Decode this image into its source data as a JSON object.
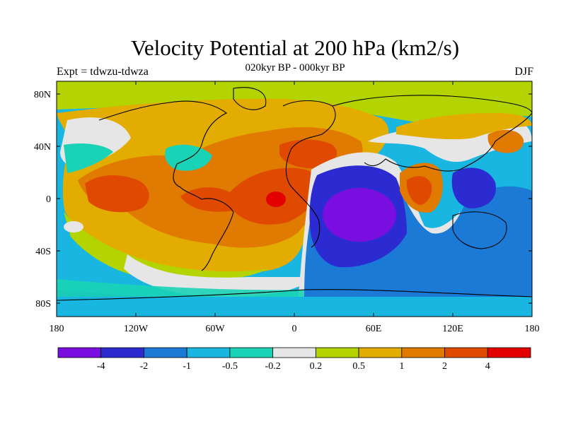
{
  "title": "Velocity Potential at 200 hPa (km2/s)",
  "center_string": "020kyr BP - 000kyr BP",
  "left_string": "Expt = tdwzu-tdwza",
  "right_string": "DJF",
  "map": {
    "projection": "cylindrical-equidistant",
    "lon_range": [
      -180,
      180
    ],
    "lat_range": [
      -90,
      90
    ],
    "x_ticks": [
      "180",
      "120W",
      "60W",
      "0",
      "60E",
      "120E",
      "180"
    ],
    "y_ticks": [
      "80N",
      "40N",
      "0",
      "40S",
      "80S"
    ],
    "coastlines": "black"
  },
  "colorbar": {
    "colors": [
      "#7a0ee0",
      "#2b2bd1",
      "#1a7ad6",
      "#18b6e0",
      "#1ad3b6",
      "#e6e6e6",
      "#b3d400",
      "#e3ac00",
      "#e07a00",
      "#e04a00",
      "#e30000"
    ],
    "labels": [
      "-4",
      "-2",
      "-1",
      "-0.5",
      "-0.2",
      "0.2",
      "0.5",
      "1",
      "2",
      "4"
    ]
  },
  "field_colors": {
    "ocean_bg": "#18b6e0",
    "level_minus4": "#7a0ee0",
    "level_minus2": "#2b2bd1",
    "level_minus1": "#1a7ad6",
    "level_minus05": "#18b6e0",
    "level_minus02": "#1ad3b6",
    "level_zero": "#e6e6e6",
    "level_02": "#b3d400",
    "level_05": "#e3ac00",
    "level_1": "#e07a00",
    "level_2": "#e04a00",
    "level_4": "#e30000"
  }
}
